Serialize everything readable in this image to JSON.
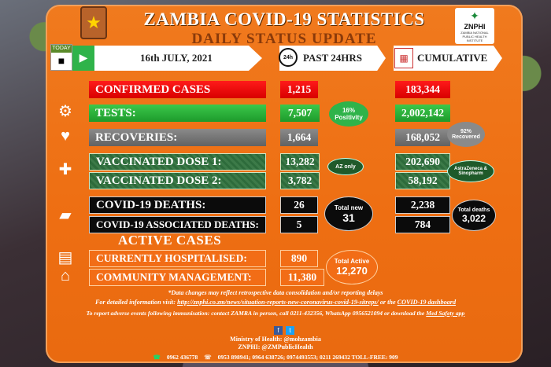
{
  "header": {
    "title": "ZAMBIA COVID-19 STATISTICS",
    "subtitle": "DAILY STATUS UPDATE",
    "today_label": "TODAY",
    "date": "16th JULY, 2021",
    "col_past": "PAST 24HRS",
    "col_past_icon": "24h",
    "col_cumulative": "CUMULATIVE",
    "logo_right": "ZNPHI",
    "logo_right_small": "ZAMBIA NATIONAL PUBLIC HEALTH INSTITUTE"
  },
  "rows": {
    "confirmed": {
      "label": "CONFIRMED CASES",
      "past": "1,215",
      "cum": "183,344"
    },
    "tests": {
      "label": "TESTS:",
      "past": "7,507",
      "cum": "2,002,142",
      "badge_1": "16%",
      "badge_2": "Positivity"
    },
    "recoveries": {
      "label": "RECOVERIES:",
      "past": "1,664",
      "cum": "168,052",
      "badge_1": "92%",
      "badge_2": "Recovered"
    },
    "dose1": {
      "label": "VACCINATED DOSE 1:",
      "past": "13,282",
      "cum": "202,690",
      "badge": "AZ only"
    },
    "dose2": {
      "label": "VACCINATED DOSE 2:",
      "past": "3,782",
      "cum": "58,192",
      "badge_1": "AstraZeneca &",
      "badge_2": "Sinopharm"
    },
    "deaths": {
      "label": "COVID-19 DEATHS:",
      "past": "26",
      "cum": "2,238"
    },
    "assoc_deaths": {
      "label": "COVID-19 ASSOCIATED DEATHS:",
      "past": "5",
      "cum": "784"
    },
    "total_new": {
      "label": "Total new",
      "value": "31"
    },
    "total_deaths": {
      "label": "Total deaths",
      "value": "3,022"
    }
  },
  "active": {
    "title": "ACTIVE CASES",
    "hospitalised": {
      "label": "CURRENTLY HOSPITALISED:",
      "value": "890"
    },
    "community": {
      "label": "COMMUNITY MANAGEMENT:",
      "value": "11,380"
    },
    "total_label": "Total Active",
    "total_value": "12,270"
  },
  "footer": {
    "note": "*Data changes may reflect retrospective data consolidation and/or reporting delays",
    "info_prefix": "For detailed information visit: ",
    "info_link": "http://znphi.co.zm/news/situation-reports-new-coronavirus-covid-19-sitreps/",
    "info_mid": " or the ",
    "info_dashboard": "COVID-19 dashboard",
    "report": "To report adverse events following immunisation: contact ZAMRA in person, call 0211-432356, WhatsApp 0956521094 or download the ",
    "report_link": "Med Safety app",
    "ministry": "Ministry of Health: @mohzambia",
    "znphi": "ZNPHI: @ZMPublicHealth",
    "phone_1": "0962 436778",
    "phone_2": "0953 898941; 0964 638726; 0974493553; 0211 269432 TOLL-FREE: 909"
  },
  "colors": {
    "panel": "#f07a1e",
    "red": "#ff1a1a",
    "green": "#2fb34a",
    "grey": "#7a7a7a",
    "dark_green": "#2d6b3b",
    "black": "#0b0b0b"
  },
  "icons": [
    "coat-of-arms-icon",
    "calendar-icon",
    "play-arrow-icon",
    "clock-24h-icon",
    "calendar-grid-icon",
    "test-tubes-icon",
    "hand-heart-icon",
    "syringe-icon",
    "coffin-icon",
    "hospital-bed-icon",
    "house-icon",
    "facebook-icon",
    "twitter-icon",
    "whatsapp-icon",
    "phone-icon"
  ]
}
